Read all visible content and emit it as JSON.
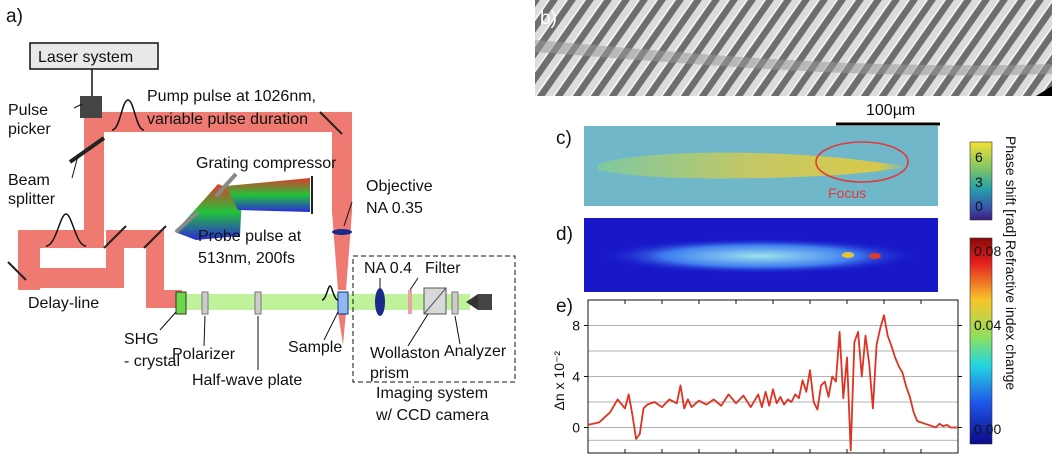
{
  "panels": {
    "a": "a)",
    "b": "b)",
    "c": "c)",
    "d": "d)",
    "e": "e)"
  },
  "setup": {
    "laser_system": "Laser system",
    "pulse_picker": [
      "Pulse",
      "picker"
    ],
    "beam_splitter": [
      "Beam",
      "splitter"
    ],
    "pump_pulse": [
      "Pump pulse at 1026nm,",
      "variable pulse duration"
    ],
    "grating_compressor": "Grating compressor",
    "objective": [
      "Objective",
      "NA 0.35"
    ],
    "probe_pulse": [
      "Probe pulse at",
      "513nm, 200fs"
    ],
    "delay_line": "Delay-line",
    "shg_crystal": [
      "SHG",
      "- crystal"
    ],
    "polarizer": "Polarizer",
    "half_wave_plate": "Half-wave plate",
    "sample": "Sample",
    "na04": "NA 0.4",
    "filter": "Filter",
    "wollaston": [
      "Wollaston",
      "prism"
    ],
    "analyzer": "Analyzer",
    "imaging_system": [
      "Imaging system",
      "w/ CCD camera"
    ]
  },
  "images": {
    "scale_bar_label": "100µm",
    "focus_label": "Focus",
    "phase_colorbar": {
      "title": "Phase shift [rad]",
      "ticks": [
        "6",
        "3",
        "0"
      ]
    },
    "refractive_colorbar": {
      "title": "Refractive index change",
      "ticks": [
        "0.08",
        "0.04",
        "0.00"
      ]
    }
  },
  "colors": {
    "pump_beam": "#ee7a72",
    "probe_beam": "#bff29a",
    "focus_ring": "#e03a3a",
    "trace": "#dd3322"
  },
  "chart_data": {
    "type": "line",
    "ylabel": "Δn x 10⁻²",
    "yticks": [
      "8",
      "4",
      "0"
    ],
    "ylim": [
      -2,
      10
    ],
    "grid": true,
    "x": [
      0,
      3,
      6,
      8,
      10,
      11,
      12,
      13,
      14,
      15,
      16,
      18,
      20,
      22,
      24,
      25,
      26,
      27,
      28,
      30,
      32,
      34,
      36,
      38,
      40,
      42,
      44,
      46,
      47,
      48,
      49,
      50,
      51,
      52,
      53,
      54,
      55,
      56,
      57,
      58,
      59,
      60,
      61,
      62,
      63,
      64,
      65,
      66,
      67,
      68,
      69,
      70,
      71,
      72,
      73,
      74,
      75,
      76,
      77,
      78,
      79,
      80,
      81,
      82,
      83,
      84,
      85,
      86,
      87,
      88,
      89,
      90,
      91,
      92,
      93,
      94,
      95,
      96,
      97,
      98,
      100
    ],
    "y": [
      0.2,
      0.4,
      1.2,
      2.2,
      1.5,
      2.6,
      1.0,
      -0.9,
      -0.5,
      1.5,
      1.8,
      2.0,
      1.6,
      2.2,
      1.9,
      3.3,
      1.5,
      2.2,
      1.6,
      2.1,
      1.8,
      2.2,
      1.7,
      2.6,
      1.9,
      2.5,
      1.6,
      2.6,
      1.6,
      2.8,
      1.7,
      3.0,
      1.9,
      2.4,
      1.8,
      2.2,
      2.0,
      2.6,
      2.3,
      3.7,
      2.8,
      4.5,
      2.0,
      1.4,
      3.3,
      3.6,
      2.4,
      4.0,
      3.6,
      7.5,
      2.3,
      5.5,
      -1.8,
      6.7,
      7.5,
      4.0,
      7.2,
      5.0,
      1.5,
      6.5,
      7.8,
      8.8,
      7.2,
      6.4,
      5.5,
      4.8,
      4.3,
      3.2,
      2.4,
      1.2,
      0.5,
      0.4,
      0.3,
      0.2,
      0.1,
      0.0,
      0.3,
      0.1,
      0.2,
      0.0,
      0.0
    ]
  }
}
